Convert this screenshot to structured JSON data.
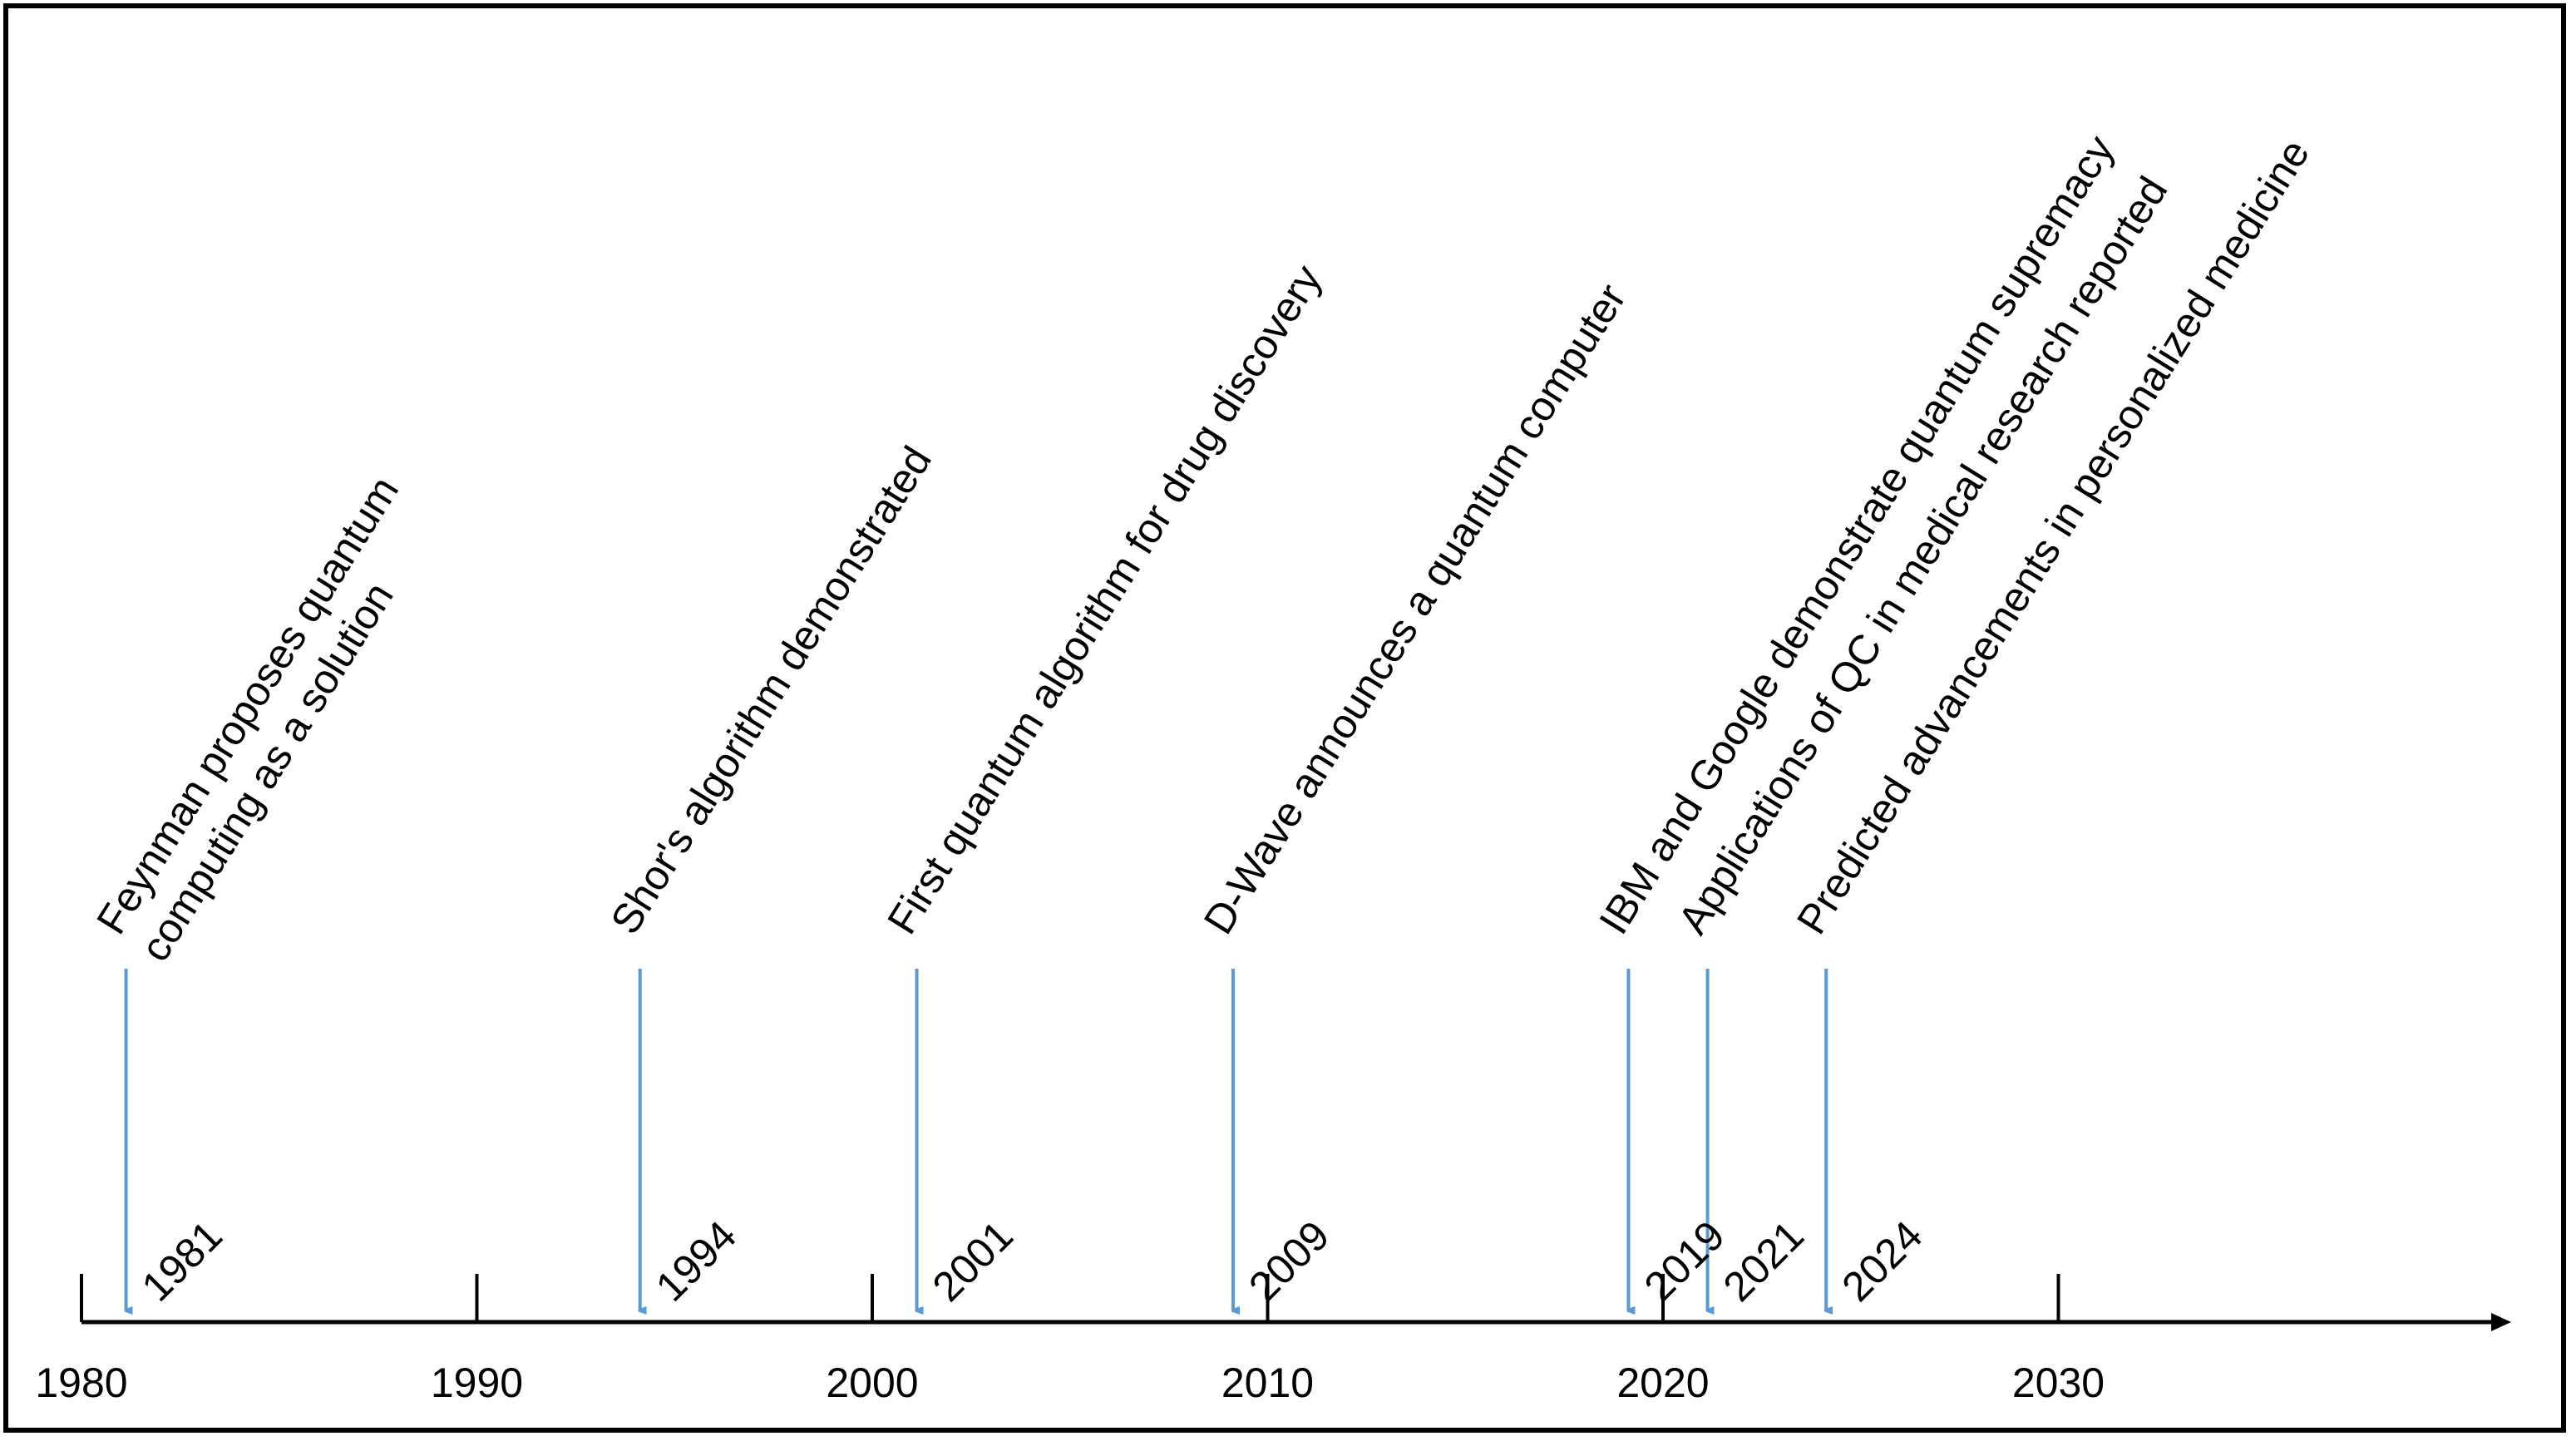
{
  "timeline": {
    "axis": {
      "start": 1980,
      "end": 2040,
      "ticks": [
        1980,
        1990,
        2000,
        2010,
        2020,
        2030
      ]
    },
    "colors": {
      "axis": "#000000",
      "arrow": "#5b9bd5",
      "text": "#000000"
    },
    "events": [
      {
        "year": 1981,
        "year_label": "1981",
        "lines": [
          "Feynman proposes quantum",
          "computing as a solution"
        ]
      },
      {
        "year": 1994,
        "year_label": "1994",
        "lines": [
          "Shor's algorithm demonstrated"
        ]
      },
      {
        "year": 2001,
        "year_label": "2001",
        "lines": [
          "First quantum algorithm for drug discovery"
        ]
      },
      {
        "year": 2009,
        "year_label": "2009",
        "lines": [
          "D-Wave announces a quantum computer"
        ]
      },
      {
        "year": 2019,
        "year_label": "2019",
        "lines": [
          "IBM and Google demonstrate quantum supremacy"
        ]
      },
      {
        "year": 2021,
        "year_label": "2021",
        "lines": [
          "Applications of QC in medical research reported"
        ]
      },
      {
        "year": 2024,
        "year_label": "2024",
        "lines": [
          "Predicted advancements in personalized medicine"
        ]
      }
    ]
  }
}
